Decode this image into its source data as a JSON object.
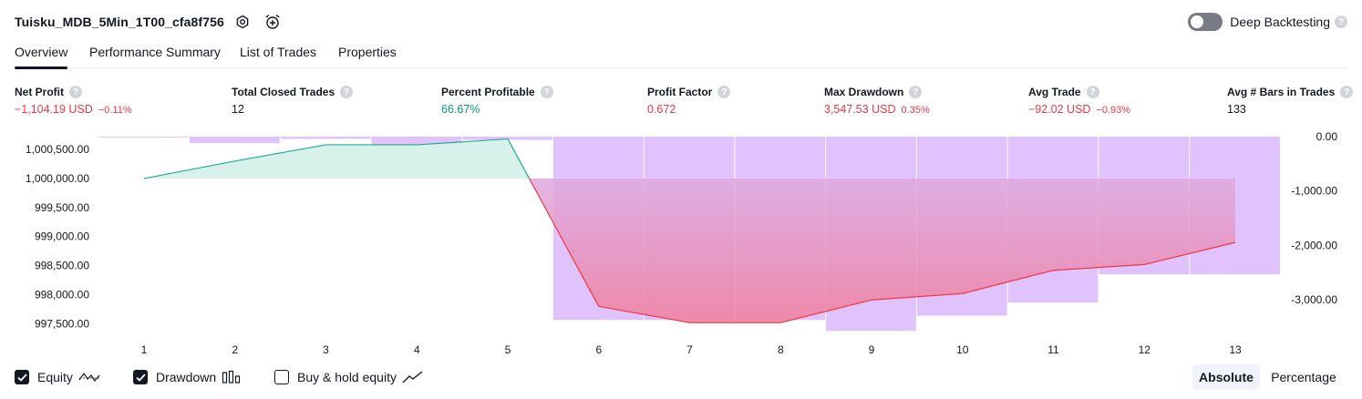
{
  "header": {
    "strategy_title": "Tuisku_MDB_5Min_1T00_cfa8f756",
    "deep_backtesting_label": "Deep Backtesting",
    "deep_backtesting_on": false,
    "help_glyph": "?"
  },
  "tabs": [
    {
      "label": "Overview",
      "active": true
    },
    {
      "label": "Performance Summary",
      "active": false
    },
    {
      "label": "List of Trades",
      "active": false
    },
    {
      "label": "Properties",
      "active": false
    }
  ],
  "metrics": [
    {
      "label": "Net Profit",
      "value": "−1,104.19 USD",
      "pct": "−0.11%",
      "tone": "neg"
    },
    {
      "label": "Total Closed Trades",
      "value": "12",
      "pct": "",
      "tone": "neu"
    },
    {
      "label": "Percent Profitable",
      "value": "66.67%",
      "pct": "",
      "tone": "pos"
    },
    {
      "label": "Profit Factor",
      "value": "0.672",
      "pct": "",
      "tone": "neg"
    },
    {
      "label": "Max Drawdown",
      "value": "3,547.53 USD",
      "pct": "0.35%",
      "tone": "neg"
    },
    {
      "label": "Avg Trade",
      "value": "−92.02 USD",
      "pct": "−0.93%",
      "tone": "neg"
    },
    {
      "label": "Avg # Bars in Trades",
      "value": "133",
      "pct": "",
      "tone": "neu"
    }
  ],
  "chart_data": {
    "type": "line",
    "x": [
      1,
      2,
      3,
      4,
      5,
      6,
      7,
      8,
      9,
      10,
      11,
      12,
      13
    ],
    "equity": {
      "name": "Equity",
      "baseline": 1000000,
      "values": [
        1000000,
        1000300,
        1000580,
        1000580,
        1000680,
        997800,
        997520,
        997520,
        997910,
        998020,
        998420,
        998520,
        998900
      ]
    },
    "drawdown": {
      "name": "Drawdown",
      "values": [
        -10,
        -120,
        -40,
        -150,
        -60,
        -3370,
        -3370,
        -3370,
        -3570,
        -3290,
        -3050,
        -2530,
        -2530
      ]
    },
    "left_axis": {
      "ticks": [
        "1,000,500.00",
        "1,000,000.00",
        "999,500.00",
        "999,000.00",
        "998,500.00",
        "998,000.00",
        "997,500.00"
      ],
      "tick_values": [
        1000500,
        1000000,
        999500,
        999000,
        998500,
        998000,
        997500
      ],
      "range": [
        997350,
        1000720
      ]
    },
    "right_axis": {
      "ticks": [
        "0.00",
        "-1,000.00",
        "-2,000.00",
        "-3,000.00"
      ],
      "tick_values": [
        0,
        -1000,
        -2000,
        -3000
      ],
      "range": [
        -3600,
        0
      ]
    },
    "x_ticks": [
      "1",
      "2",
      "3",
      "4",
      "5",
      "6",
      "7",
      "8",
      "9",
      "10",
      "11",
      "12",
      "13"
    ],
    "colors": {
      "profit_line": "#22ab94",
      "profit_fill": "#d3efe9",
      "loss_line": "#f23645",
      "loss_fill_top": "#d9b6f3",
      "loss_fill_bottom": "#f07e9b",
      "drawdown_bar": "#e0c3fc",
      "drawdown_bar_blend": "#c9b6ef",
      "drawdown_tip": "#fca5a5"
    }
  },
  "legend": {
    "equity_label": "Equity",
    "drawdown_label": "Drawdown",
    "buy_hold_label": "Buy & hold equity",
    "equity_checked": true,
    "drawdown_checked": true,
    "buy_hold_checked": false,
    "equity_icon": "equity-wave-icon",
    "drawdown_icon": "bars-icon",
    "buy_hold_icon": "trend-line-icon"
  },
  "view_toggle": {
    "absolute_label": "Absolute",
    "percentage_label": "Percentage",
    "selected": "Absolute"
  }
}
